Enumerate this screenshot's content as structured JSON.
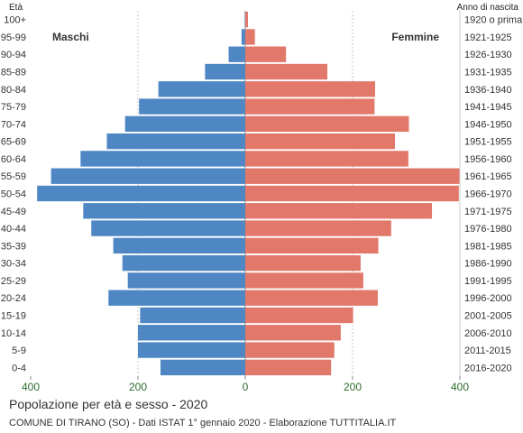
{
  "chart_data": {
    "type": "bar",
    "orientation": "horizontal-pyramid",
    "title": "Popolazione per età e sesso - 2020",
    "subtitle": "COMUNE DI TIRANO (SO) - Dati ISTAT 1° gennaio 2020 - Elaborazione TUTTITALIA.IT",
    "left_axis_label": "Età",
    "right_axis_label": "Anno di nascita",
    "xlim": [
      -400,
      400
    ],
    "x_ticks": [
      "400",
      "200",
      "0",
      "200",
      "400"
    ],
    "grid": true,
    "categories": [
      "100+",
      "95-99",
      "90-94",
      "85-89",
      "80-84",
      "75-79",
      "70-74",
      "65-69",
      "60-64",
      "55-59",
      "50-54",
      "45-49",
      "40-44",
      "35-39",
      "30-34",
      "25-29",
      "20-24",
      "15-19",
      "10-14",
      "5-9",
      "0-4"
    ],
    "birth_years": [
      "1920 o prima",
      "1921-1925",
      "1926-1930",
      "1931-1935",
      "1936-1940",
      "1941-1945",
      "1946-1950",
      "1951-1955",
      "1956-1960",
      "1961-1965",
      "1966-1970",
      "1971-1975",
      "1976-1980",
      "1981-1985",
      "1986-1990",
      "1991-1995",
      "1996-2000",
      "2001-2005",
      "2006-2010",
      "2011-2015",
      "2016-2020"
    ],
    "series": [
      {
        "name": "Maschi",
        "color": "#4f87c4",
        "values": [
          1,
          7,
          31,
          75,
          162,
          198,
          224,
          258,
          307,
          362,
          388,
          302,
          287,
          246,
          229,
          219,
          255,
          196,
          200,
          200,
          158
        ]
      },
      {
        "name": "Femmine",
        "color": "#e2786a",
        "values": [
          5,
          18,
          76,
          153,
          242,
          241,
          305,
          279,
          304,
          399,
          398,
          348,
          272,
          248,
          215,
          220,
          247,
          201,
          178,
          166,
          160
        ]
      }
    ]
  }
}
